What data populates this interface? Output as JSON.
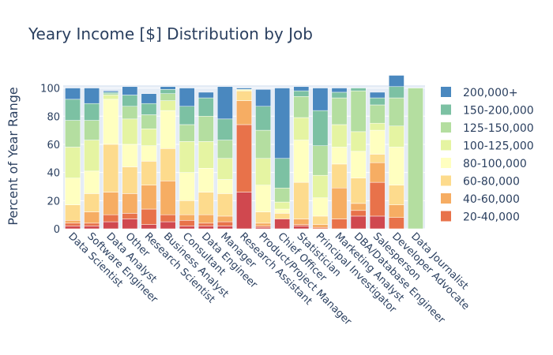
{
  "chart_data": {
    "type": "bar",
    "stacked": true,
    "title": "Yeary Income [$] Distribution by Job",
    "xlabel": "",
    "ylabel": "Percent of Year Range",
    "ylim": [
      0,
      102
    ],
    "yticks": [
      0,
      20,
      40,
      60,
      80,
      100
    ],
    "grid": true,
    "legend_position": "right",
    "categories": [
      "Data Scientist",
      "Software Engineer",
      "Data Analyst",
      "Other",
      "Research Scientist",
      "Business Analyst",
      "Consultant",
      "Data Engineer",
      "Manager",
      "Research Assistant",
      "Product/Project Manager",
      "Chief Officer",
      "Statistician",
      "Principal Investigator",
      "Marketing Analyst",
      "DBA/Database Engineer",
      "Salesperson",
      "Developer Advocate",
      "Data Journalist"
    ],
    "series": [
      {
        "name": "0-20,000",
        "color": "#d0484f",
        "legend": false,
        "values": [
          2,
          2,
          5,
          7,
          3,
          5,
          2,
          2,
          2,
          26,
          1,
          7,
          2,
          0,
          0,
          9,
          9,
          0,
          0
        ]
      },
      {
        "name": "20-40,000",
        "color": "#e8724a",
        "legend": true,
        "values": [
          2,
          2,
          5,
          4,
          11,
          5,
          4,
          2,
          3,
          48,
          1,
          0,
          1,
          1,
          7,
          4,
          24,
          8,
          0
        ]
      },
      {
        "name": "40-60,000",
        "color": "#f6ad63",
        "legend": true,
        "values": [
          2,
          8,
          16,
          14,
          17,
          24,
          4,
          6,
          4,
          17,
          2,
          0,
          4,
          2,
          22,
          5,
          14,
          9,
          0
        ]
      },
      {
        "name": "60-80,000",
        "color": "#fddb8d",
        "legend": true,
        "values": [
          11,
          13,
          34,
          19,
          17,
          23,
          10,
          16,
          16,
          7,
          8,
          4,
          26,
          6,
          17,
          18,
          6,
          14,
          0
        ]
      },
      {
        "name": "80-100,000",
        "color": "#ffffc0",
        "legend": true,
        "values": [
          19,
          16,
          32,
          16,
          11,
          27,
          20,
          17,
          10,
          1,
          19,
          3,
          30,
          13,
          12,
          19,
          17,
          27,
          0
        ]
      },
      {
        "name": "100-125,000",
        "color": "#e5f4a2",
        "legend": true,
        "values": [
          22,
          22,
          3,
          18,
          12,
          7,
          22,
          19,
          15,
          0,
          19,
          5,
          16,
          16,
          16,
          14,
          5,
          15,
          0
        ]
      },
      {
        "name": "125-150,000",
        "color": "#b4dea0",
        "legend": true,
        "values": [
          19,
          14,
          1,
          9,
          10,
          5,
          12,
          18,
          13,
          0,
          20,
          10,
          15,
          21,
          19,
          29,
          13,
          20,
          100
        ]
      },
      {
        "name": "150-200,000",
        "color": "#7cc1a3",
        "legend": true,
        "values": [
          15,
          12,
          1,
          8,
          8,
          3,
          13,
          13,
          15,
          0,
          17,
          21,
          4,
          25,
          4,
          2,
          5,
          8,
          0
        ]
      },
      {
        "name": "200,000+",
        "color": "#4a88bf",
        "legend": true,
        "values": [
          8,
          11,
          1,
          6,
          7,
          2,
          13,
          4,
          23,
          1,
          12,
          50,
          3,
          16,
          3,
          0,
          4,
          8,
          0
        ]
      }
    ]
  }
}
